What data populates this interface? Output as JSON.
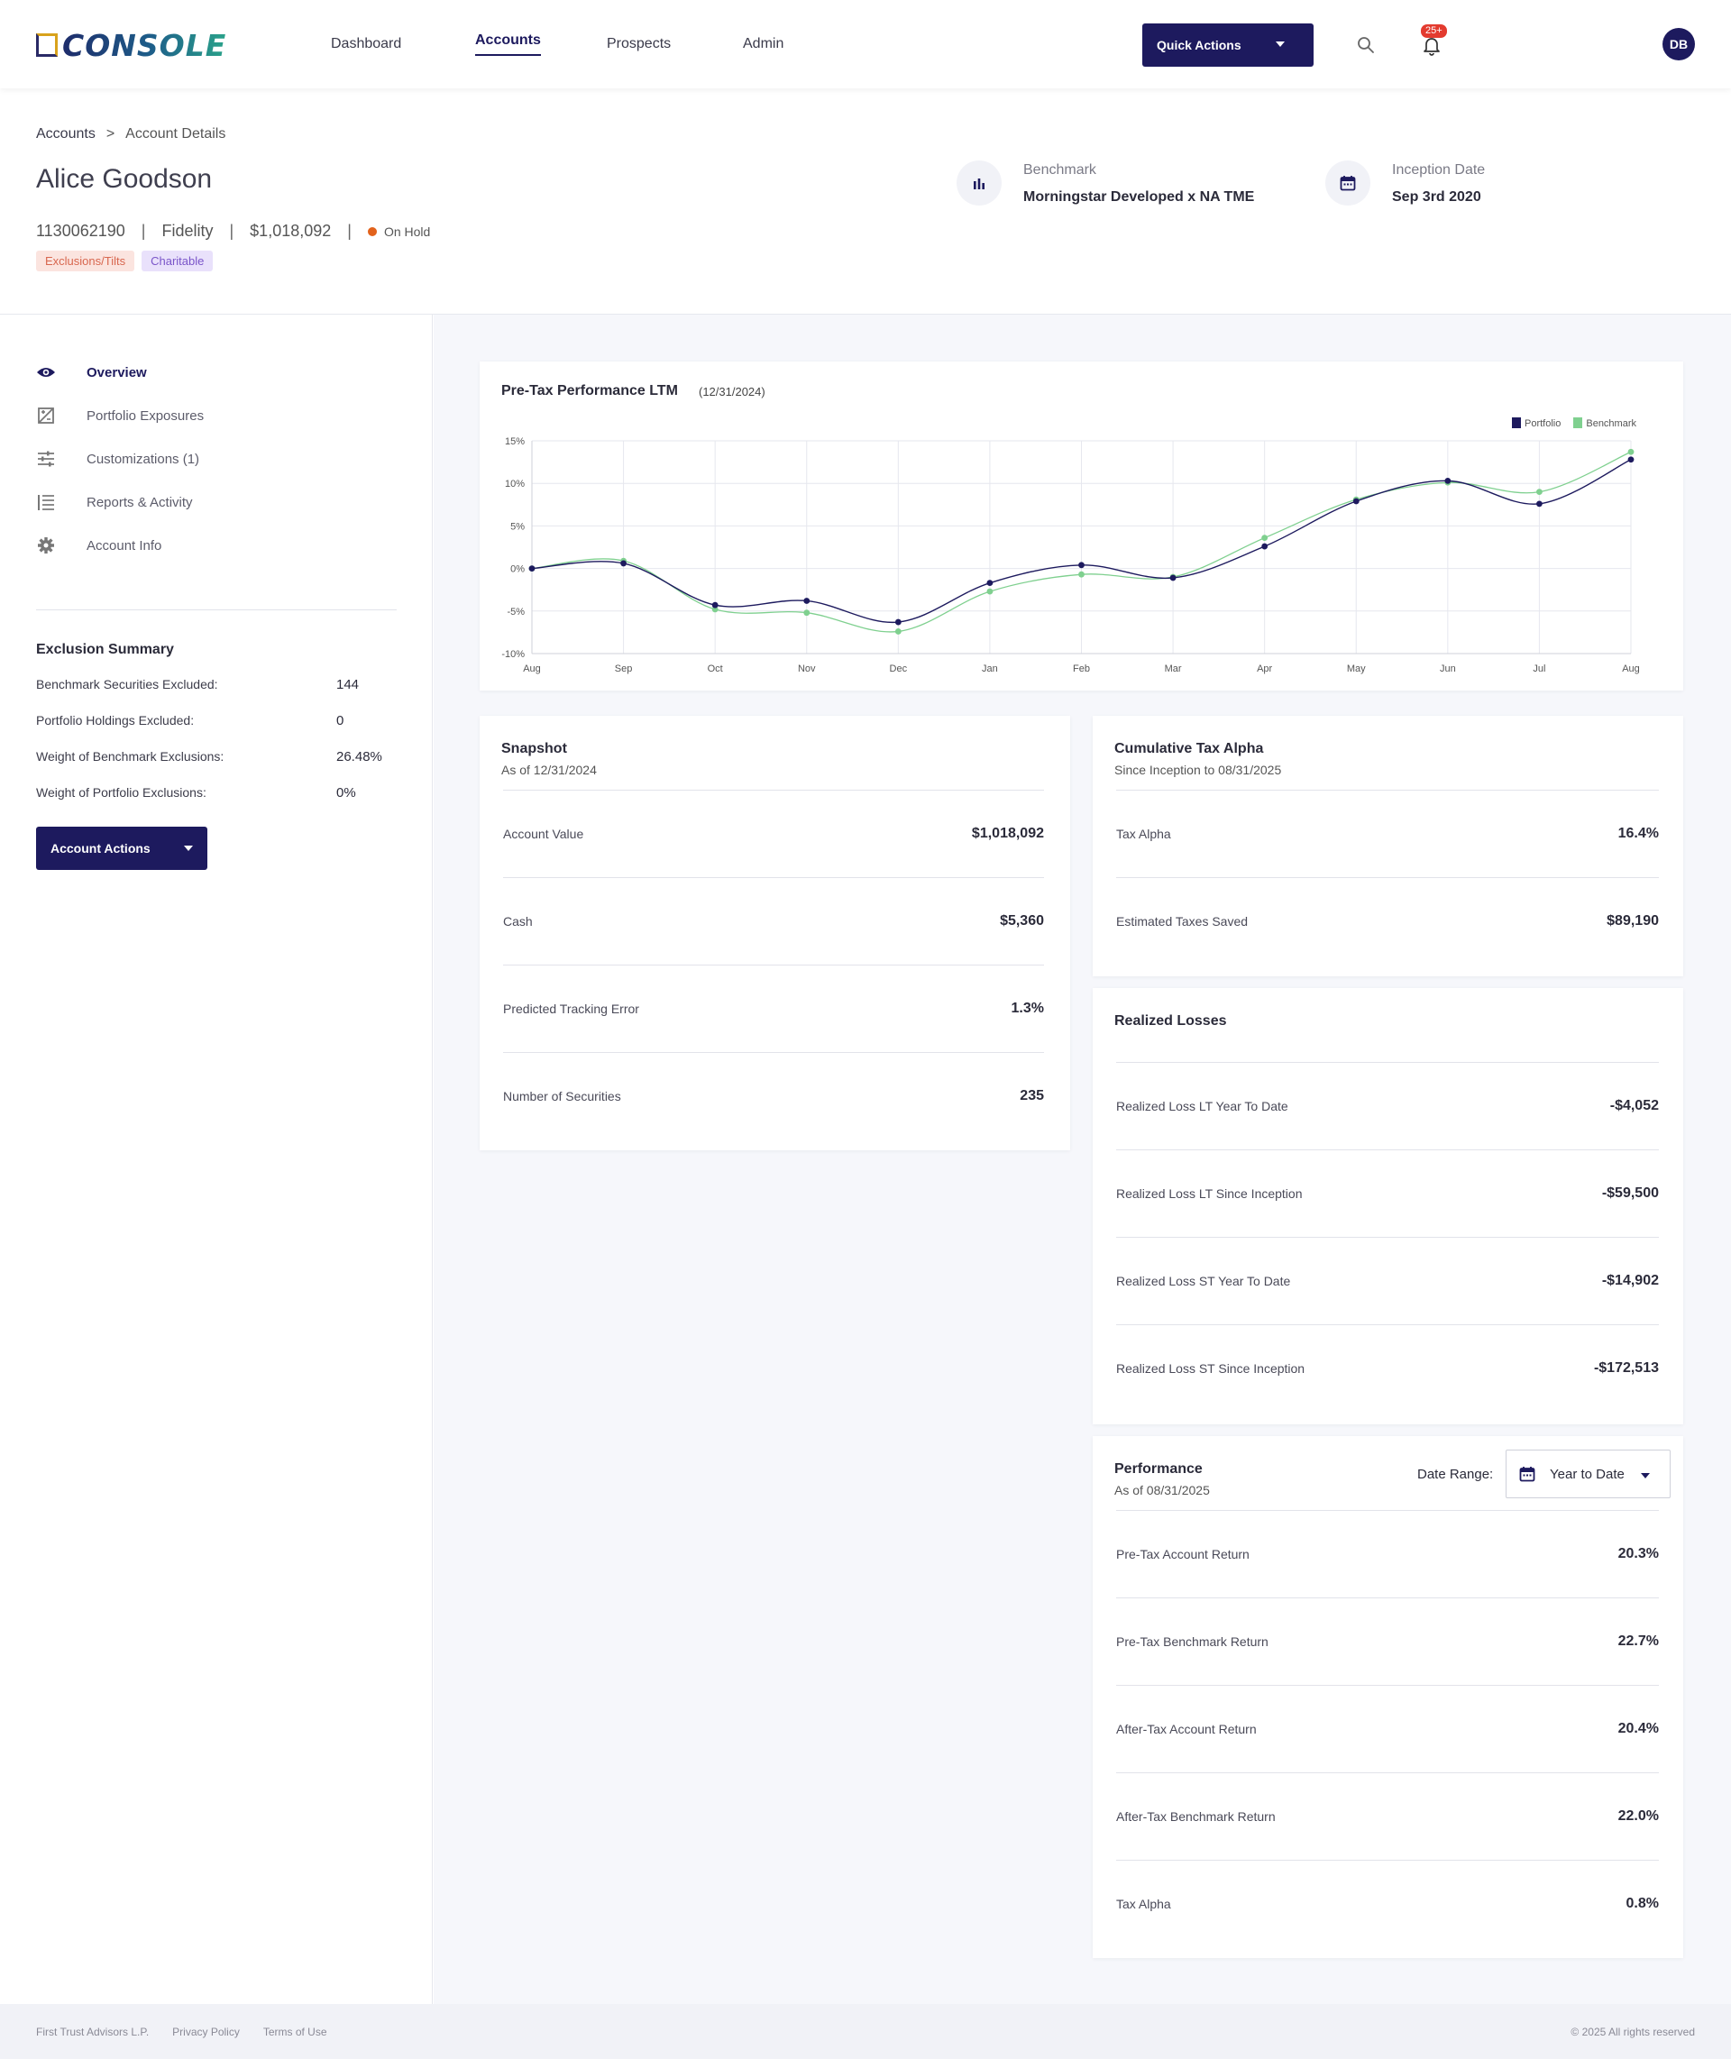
{
  "topbar": {
    "logo_text": "CONSOLE",
    "nav": [
      {
        "label": "Dashboard",
        "active": false
      },
      {
        "label": "Accounts",
        "active": true
      },
      {
        "label": "Prospects",
        "active": false
      },
      {
        "label": "Admin",
        "active": false
      }
    ],
    "quick_actions_label": "Quick Actions",
    "notification_count": "25+",
    "avatar_initials": "DB"
  },
  "header": {
    "breadcrumb": [
      "Accounts",
      ">",
      "Account Details"
    ],
    "account_name": "Alice Goodson",
    "account_number": "1130062190",
    "custodian": "Fidelity",
    "account_value": "$1,018,092",
    "status": "On Hold",
    "separator": "|",
    "tags": [
      "Exclusions/Tilts",
      "Charitable"
    ],
    "benchmark_label": "Benchmark",
    "benchmark_value": "Morningstar Developed x NA TME",
    "inception_label": "Inception Date",
    "inception_value": "Sep 3rd 2020"
  },
  "sidebar": {
    "items": [
      {
        "label": "Overview",
        "icon": "eye-icon",
        "active": true
      },
      {
        "label": "Portfolio Exposures",
        "icon": "exposure-icon",
        "active": false
      },
      {
        "label": "Customizations (1)",
        "icon": "sliders-icon",
        "active": false
      },
      {
        "label": "Reports & Activity",
        "icon": "list-icon",
        "active": false
      },
      {
        "label": "Account Info",
        "icon": "gear-icon",
        "active": false
      }
    ],
    "exclusion_summary": {
      "title": "Exclusion Summary",
      "rows": [
        {
          "label": "Benchmark Securities Excluded:",
          "value": "144"
        },
        {
          "label": "Portfolio Holdings Excluded:",
          "value": "0"
        },
        {
          "label": "Weight of Benchmark Exclusions:",
          "value": "26.48%"
        },
        {
          "label": "Weight of Portfolio Exclusions:",
          "value": "0%"
        }
      ]
    },
    "account_actions_label": "Account Actions"
  },
  "performance_chart": {
    "title": "Pre-Tax Performance LTM",
    "date": "(12/31/2024)"
  },
  "chart_data": {
    "type": "line",
    "title": "Pre-Tax Performance LTM",
    "categories": [
      "Aug",
      "Sep",
      "Oct",
      "Nov",
      "Dec",
      "Jan",
      "Feb",
      "Mar",
      "Apr",
      "May",
      "Jun",
      "Jul",
      "Aug"
    ],
    "series": [
      {
        "name": "Portfolio",
        "color": "#1d1a5e",
        "values": [
          0,
          0.6,
          -4.3,
          -3.8,
          -6.3,
          -1.7,
          0.4,
          -1.1,
          2.6,
          7.9,
          10.3,
          7.6,
          12.8
        ]
      },
      {
        "name": "Benchmark",
        "color": "#7fd08f",
        "values": [
          0,
          0.9,
          -4.8,
          -5.2,
          -7.4,
          -2.7,
          -0.7,
          -1.0,
          3.6,
          8.1,
          10.1,
          9.0,
          13.7
        ]
      }
    ],
    "yticks": [
      "15%",
      "10%",
      "5%",
      "0%",
      "-5%",
      "-10%"
    ],
    "ylim": [
      -10,
      15
    ],
    "grid": true,
    "legend": "top-right"
  },
  "snapshot": {
    "title": "Snapshot",
    "subtitle": "As of 12/31/2024",
    "rows": [
      {
        "label": "Account Value",
        "value": "$1,018,092"
      },
      {
        "label": "Cash",
        "value": "$5,360"
      },
      {
        "label": "Predicted Tracking Error",
        "value": "1.3%"
      },
      {
        "label": "Number of Securities",
        "value": "235"
      }
    ]
  },
  "tax_alpha": {
    "title": "Cumulative Tax Alpha",
    "subtitle": "Since Inception to 08/31/2025",
    "rows": [
      {
        "label": "Tax Alpha",
        "value": "16.4%"
      },
      {
        "label": "Estimated Taxes Saved",
        "value": "$89,190"
      }
    ]
  },
  "realized_losses": {
    "title": "Realized Losses",
    "rows": [
      {
        "label": "Realized Loss LT Year To Date",
        "value": "-$4,052"
      },
      {
        "label": "Realized Loss LT Since Inception",
        "value": "-$59,500"
      },
      {
        "label": "Realized Loss ST Year To Date",
        "value": "-$14,902"
      },
      {
        "label": "Realized Loss ST Since Inception",
        "value": "-$172,513"
      }
    ]
  },
  "performance": {
    "title": "Performance",
    "subtitle": "As of 08/31/2025",
    "date_range_label": "Date Range:",
    "date_range_value": "Year to Date",
    "rows": [
      {
        "label": "Pre-Tax Account Return",
        "value": "20.3%"
      },
      {
        "label": "Pre-Tax Benchmark Return",
        "value": "22.7%"
      },
      {
        "label": "After-Tax Account Return",
        "value": "20.4%"
      },
      {
        "label": "After-Tax Benchmark Return",
        "value": "22.0%"
      },
      {
        "label": "Tax Alpha",
        "value": "0.8%"
      }
    ]
  },
  "footer": {
    "links": [
      "First Trust Advisors L.P.",
      "Privacy Policy",
      "Terms of Use"
    ],
    "copyright": "© 2025 All rights reserved"
  },
  "colors": {
    "primary": "#1d1a5e",
    "benchmark_green": "#7fd08f",
    "status_orange": "#e2621b",
    "badge_red": "#e33b2f"
  }
}
